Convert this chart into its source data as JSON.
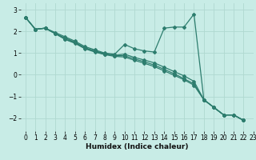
{
  "xlabel": "Humidex (Indice chaleur)",
  "ylabel": "",
  "xlim": [
    -0.5,
    23
  ],
  "ylim": [
    -2.6,
    3.3
  ],
  "yticks": [
    -2,
    -1,
    0,
    1,
    2,
    3
  ],
  "xticks": [
    0,
    1,
    2,
    3,
    4,
    5,
    6,
    7,
    8,
    9,
    10,
    11,
    12,
    13,
    14,
    15,
    16,
    17,
    18,
    19,
    20,
    21,
    22,
    23
  ],
  "bg_color": "#c8ece6",
  "grid_color": "#b0d8d0",
  "line_color": "#2d7d6e",
  "series": [
    [
      2.65,
      2.1,
      2.15,
      1.95,
      1.75,
      1.55,
      1.3,
      1.15,
      1.0,
      0.95,
      1.4,
      1.2,
      1.1,
      1.05,
      2.15,
      2.2,
      2.2,
      2.8,
      -1.15,
      -1.5,
      -1.85,
      -1.85,
      -2.1
    ],
    [
      2.65,
      2.1,
      2.15,
      1.9,
      1.7,
      1.5,
      1.25,
      1.1,
      0.98,
      0.9,
      0.95,
      0.8,
      0.68,
      0.55,
      0.35,
      0.15,
      -0.05,
      -0.3,
      -1.15,
      -1.5,
      -1.85,
      -1.85,
      -2.1
    ],
    [
      2.65,
      2.1,
      2.15,
      1.9,
      1.65,
      1.48,
      1.22,
      1.08,
      0.95,
      0.88,
      0.88,
      0.73,
      0.6,
      0.45,
      0.25,
      0.05,
      -0.18,
      -0.42,
      -1.15,
      -1.5,
      -1.85,
      -1.85,
      -2.1
    ],
    [
      2.65,
      2.1,
      2.15,
      1.9,
      1.63,
      1.45,
      1.2,
      1.05,
      0.93,
      0.85,
      0.82,
      0.67,
      0.53,
      0.38,
      0.18,
      -0.02,
      -0.23,
      -0.48,
      -1.15,
      -1.5,
      -1.85,
      -1.85,
      -2.1
    ]
  ],
  "marker": "D",
  "marker_size": 2.0,
  "line_width": 0.9,
  "tick_fontsize": 5.5,
  "xlabel_fontsize": 6.5
}
